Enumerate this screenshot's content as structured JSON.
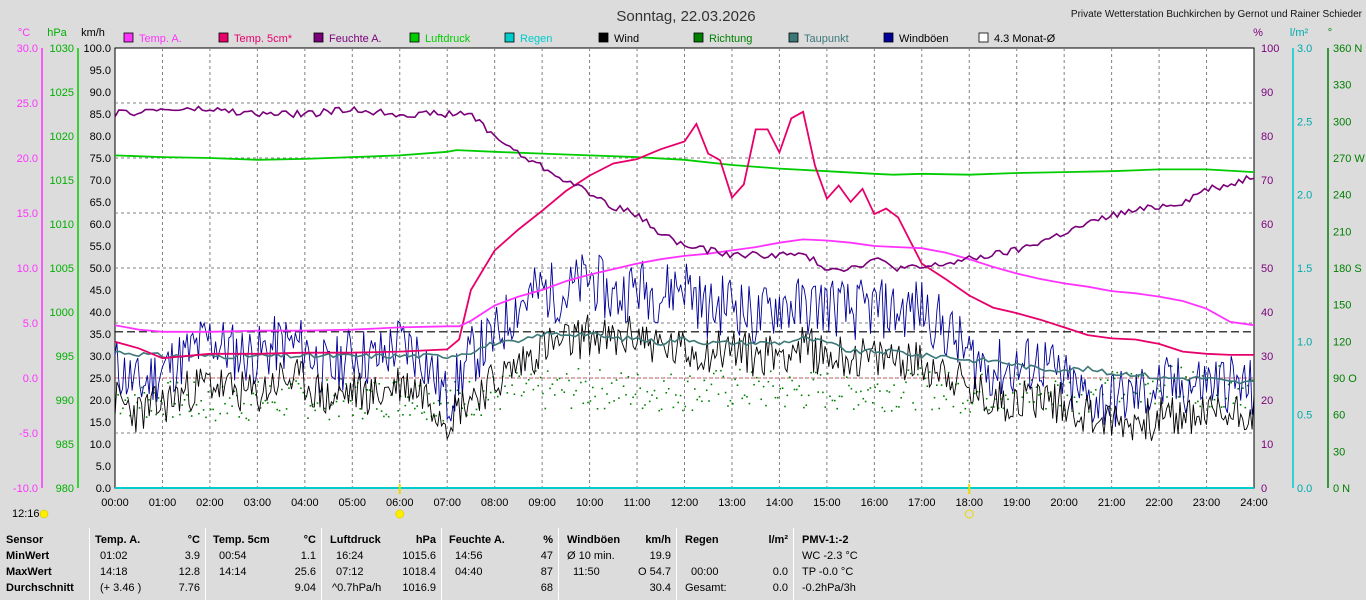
{
  "title": "Sonntag, 22.03.2026",
  "credit": "Private Wetterstation Buchkirchen by Gernot und Rainer Schieder",
  "current_time": "12:16",
  "colors": {
    "temp_a": "#ff33ff",
    "temp_5cm": "#e8006a",
    "feuchte": "#7a007a",
    "luftdruck": "#00cc00",
    "regen": "#00cccc",
    "wind": "#000000",
    "richtung": "#008000",
    "taupunkt": "#3c7878",
    "windboeen": "#000099",
    "monat": "#000000",
    "grid": "#808080",
    "plot_bg": "#ffffff"
  },
  "legend": [
    {
      "label": "Temp. A.",
      "color": "#ff33ff"
    },
    {
      "label": "Temp. 5cm*",
      "color": "#e8006a"
    },
    {
      "label": "Feuchte A.",
      "color": "#7a007a"
    },
    {
      "label": "Luftdruck",
      "color": "#00cc00"
    },
    {
      "label": "Regen",
      "color": "#00cccc"
    },
    {
      "label": "Wind",
      "color": "#000000"
    },
    {
      "label": "Richtung",
      "color": "#008000"
    },
    {
      "label": "Taupunkt",
      "color": "#3c7878"
    },
    {
      "label": "Windböen",
      "color": "#000099"
    },
    {
      "label": "4.3 Monat-Ø",
      "color": "#ffffff"
    }
  ],
  "chart_data": {
    "type": "line",
    "title": "Sonntag, 22.03.2026",
    "x_ticks": [
      "00:00",
      "01:00",
      "02:00",
      "03:00",
      "04:00",
      "05:00",
      "06:00",
      "07:00",
      "08:00",
      "09:00",
      "10:00",
      "11:00",
      "12:00",
      "13:00",
      "14:00",
      "15:00",
      "16:00",
      "17:00",
      "18:00",
      "19:00",
      "20:00",
      "21:00",
      "22:00",
      "23:00",
      "24:00"
    ],
    "axes": {
      "temp_c": {
        "unit": "°C",
        "range": [
          -10,
          30
        ],
        "ticks": [
          "30.0",
          "25.0",
          "20.0",
          "15.0",
          "10.0",
          "5.0",
          "0.0",
          "-5.0",
          "-10.0"
        ]
      },
      "pressure_hpa": {
        "unit": "hPa",
        "range": [
          980,
          1030
        ],
        "ticks": [
          "1030",
          "1025",
          "1020",
          "1015",
          "1010",
          "1005",
          "1000",
          "995",
          "990",
          "985",
          "980"
        ]
      },
      "wind_kmh": {
        "unit": "km/h",
        "range": [
          0,
          100
        ],
        "ticks": [
          "100.0",
          "95.0",
          "90.0",
          "85.0",
          "80.0",
          "75.0",
          "70.0",
          "65.0",
          "60.0",
          "55.0",
          "50.0",
          "45.0",
          "40.0",
          "35.0",
          "30.0",
          "25.0",
          "20.0",
          "15.0",
          "10.0",
          "5.0",
          "0.0"
        ]
      },
      "humidity_pct": {
        "unit": "%",
        "range": [
          0,
          100
        ],
        "ticks": [
          "100",
          "90",
          "80",
          "70",
          "60",
          "50",
          "40",
          "30",
          "20",
          "10",
          "0"
        ]
      },
      "rain_lm2": {
        "unit": "l/m²",
        "range": [
          0,
          3
        ],
        "ticks": [
          "3.0",
          "2.5",
          "2.0",
          "1.5",
          "1.0",
          "0.5",
          "0.0"
        ]
      },
      "direction_deg": {
        "unit": "°",
        "range": [
          0,
          360
        ],
        "ticks": [
          "360 N",
          "330",
          "300",
          "270 W",
          "240",
          "210",
          "180 S",
          "150",
          "120",
          "90 O",
          "60",
          "30",
          "0 N"
        ]
      }
    },
    "sunrise": "06:00",
    "sunset": "18:00",
    "series": [
      {
        "name": "Temp. A.",
        "axis": "temp_c",
        "x": [
          0,
          0.5,
          1,
          2,
          3,
          4,
          5,
          6,
          7,
          7.25,
          7.5,
          8,
          8.5,
          9,
          9.5,
          10,
          10.5,
          11,
          11.5,
          12,
          12.5,
          13,
          13.5,
          14,
          14.5,
          15,
          15.5,
          16,
          16.5,
          17,
          17.5,
          18,
          18.5,
          19,
          19.5,
          20,
          20.5,
          21,
          21.5,
          22,
          22.5,
          23,
          23.5,
          24
        ],
        "y": [
          4.8,
          4.4,
          4.2,
          4.2,
          4.3,
          4.3,
          4.4,
          4.6,
          4.7,
          4.7,
          5.2,
          6.6,
          7.4,
          8.0,
          8.8,
          9.4,
          9.9,
          10.4,
          10.8,
          11.1,
          11.3,
          11.6,
          11.9,
          12.3,
          12.6,
          12.5,
          12.3,
          12.0,
          11.9,
          11.8,
          11.4,
          10.8,
          10.1,
          9.5,
          9.0,
          8.6,
          8.3,
          7.9,
          7.7,
          7.4,
          7.0,
          6.3,
          5.1,
          4.8
        ]
      },
      {
        "name": "Temp. 5cm*",
        "axis": "temp_c",
        "x": [
          0,
          0.5,
          1,
          2,
          3,
          4,
          5,
          6,
          7,
          7.25,
          7.5,
          8,
          8.5,
          9,
          9.5,
          10,
          10.5,
          11,
          11.5,
          12,
          12.25,
          12.5,
          12.75,
          13,
          13.25,
          13.5,
          13.75,
          14,
          14.25,
          14.5,
          14.75,
          15,
          15.25,
          15.5,
          15.75,
          16,
          16.25,
          16.5,
          16.75,
          17,
          17.5,
          18,
          18.5,
          19,
          19.5,
          20,
          20.5,
          21,
          21.5,
          22,
          22.5,
          23,
          23.5,
          24
        ],
        "y": [
          3.3,
          2.7,
          1.8,
          2.2,
          2.2,
          2.3,
          2.3,
          2.4,
          2.6,
          3.5,
          8.0,
          11.6,
          13.5,
          15.2,
          17.0,
          18.4,
          19.5,
          19.9,
          20.8,
          21.5,
          23.1,
          20.4,
          19.8,
          16.4,
          17.6,
          22.6,
          22.6,
          20.5,
          23.6,
          24.2,
          19.3,
          16.3,
          17.5,
          16.0,
          17.2,
          14.9,
          15.4,
          14.6,
          12.5,
          10.4,
          9.0,
          7.5,
          6.4,
          5.9,
          5.3,
          4.6,
          3.9,
          3.6,
          3.5,
          3.1,
          2.4,
          2.2,
          2.1,
          2.1
        ]
      },
      {
        "name": "Feuchte A.",
        "axis": "humidity_pct",
        "x": [
          0,
          1,
          2,
          3,
          4,
          5,
          6,
          6.5,
          7,
          7.5,
          8,
          8.5,
          9,
          9.5,
          10,
          10.5,
          11,
          11.5,
          12,
          12.5,
          13,
          13.5,
          14,
          14.5,
          15,
          15.5,
          16,
          16.5,
          17,
          17.5,
          18,
          18.5,
          19,
          19.5,
          20,
          20.5,
          21,
          21.5,
          22,
          22.5,
          23,
          23.5,
          24
        ],
        "y": [
          85,
          86,
          86,
          85,
          85,
          86,
          85,
          85,
          85,
          85,
          80,
          76,
          73,
          70,
          67,
          64,
          62,
          58,
          55,
          54,
          53,
          53,
          53,
          53,
          50,
          50,
          52,
          50,
          50,
          51,
          52,
          53,
          54,
          56,
          58,
          60,
          62,
          63,
          64,
          65,
          68,
          69,
          71
        ]
      },
      {
        "name": "Luftdruck",
        "axis": "pressure_hpa",
        "x": [
          0,
          1,
          2,
          3,
          4,
          5,
          6,
          7,
          7.2,
          8,
          9,
          10,
          11,
          12,
          13,
          14,
          15,
          16,
          16.4,
          17,
          18,
          19,
          20,
          21,
          22,
          23,
          24
        ],
        "y": [
          1017.8,
          1017.6,
          1017.5,
          1017.3,
          1017.4,
          1017.6,
          1017.8,
          1018.2,
          1018.4,
          1018.2,
          1018.0,
          1017.8,
          1017.6,
          1017.3,
          1016.7,
          1016.3,
          1016.0,
          1015.7,
          1015.6,
          1015.7,
          1015.6,
          1015.8,
          1015.9,
          1016.0,
          1016.2,
          1016.2,
          1015.9
        ]
      },
      {
        "name": "Taupunkt",
        "axis": "wind_kmh",
        "x": [
          0,
          1,
          2,
          3,
          4,
          5,
          6,
          7,
          7.5,
          8,
          8.5,
          9,
          9.5,
          10,
          10.5,
          11,
          11.5,
          12,
          12.5,
          13,
          13.5,
          14,
          14.5,
          15,
          15.5,
          16,
          16.5,
          17,
          17.5,
          18,
          18.5,
          19,
          19.5,
          20,
          20.5,
          21,
          21.5,
          22,
          22.5,
          23,
          23.5,
          24
        ],
        "y": [
          31,
          30,
          30,
          30,
          30,
          30,
          30,
          30,
          31,
          33,
          33,
          35,
          35,
          35,
          34,
          34,
          33,
          34,
          33,
          33,
          33,
          33,
          34,
          33,
          31,
          31,
          31,
          30,
          30,
          29,
          29,
          28,
          27,
          27,
          27,
          26,
          26,
          25,
          25,
          25,
          24,
          24
        ]
      },
      {
        "name": "Wind",
        "axis": "wind_kmh",
        "x": [
          0,
          0.5,
          1,
          1.5,
          2,
          2.5,
          3,
          3.5,
          4,
          4.5,
          5,
          5.5,
          6,
          6.5,
          7,
          7.5,
          8,
          8.5,
          9,
          9.5,
          10,
          10.5,
          11,
          11.5,
          12,
          12.5,
          13,
          13.5,
          14,
          14.5,
          15,
          15.5,
          16,
          16.5,
          17,
          17.5,
          18,
          18.5,
          19,
          19.5,
          20,
          20.5,
          21,
          21.5,
          22,
          22.5,
          23,
          23.5,
          24
        ],
        "y": [
          20,
          17,
          19,
          22,
          24,
          22,
          21,
          25,
          24,
          20,
          22,
          21,
          24,
          22,
          16,
          21,
          24,
          28,
          32,
          33,
          35,
          33,
          35,
          32,
          31,
          31,
          32,
          30,
          31,
          32,
          30,
          30,
          29,
          30,
          28,
          27,
          22,
          20,
          20,
          21,
          19,
          17,
          15,
          15,
          16,
          16,
          17,
          17,
          18
        ]
      },
      {
        "name": "Windböen",
        "axis": "wind_kmh",
        "x": [
          0,
          0.5,
          1,
          1.5,
          2,
          2.5,
          3,
          3.5,
          4,
          4.5,
          5,
          5.5,
          6,
          6.5,
          7,
          7.5,
          8,
          8.5,
          9,
          9.5,
          10,
          10.5,
          11,
          11.5,
          12,
          12.5,
          13,
          13.5,
          14,
          14.5,
          15,
          15.5,
          16,
          16.5,
          17,
          17.5,
          18,
          18.5,
          19,
          19.5,
          20,
          20.5,
          21,
          21.5,
          22,
          22.5,
          23,
          23.5,
          24
        ],
        "y": [
          28,
          23,
          27,
          30,
          34,
          31,
          30,
          33,
          32,
          26,
          31,
          29,
          33,
          30,
          20,
          30,
          34,
          42,
          45,
          44,
          48,
          43,
          46,
          44,
          47,
          40,
          43,
          38,
          42,
          41,
          42,
          40,
          41,
          40,
          41,
          36,
          30,
          27,
          27,
          29,
          24,
          20,
          20,
          21,
          23,
          23,
          24,
          24,
          22
        ]
      },
      {
        "name": "Richtung",
        "axis": "direction_deg",
        "x": [
          0,
          1,
          2,
          3,
          4,
          5,
          6,
          7,
          8,
          9,
          10,
          11,
          12,
          13,
          14,
          15,
          16,
          17,
          18,
          19,
          20,
          21,
          22,
          23,
          24
        ],
        "y": [
          75,
          72,
          70,
          72,
          74,
          73,
          76,
          72,
          78,
          80,
          82,
          80,
          80,
          82,
          80,
          81,
          80,
          82,
          78,
          80,
          78,
          80,
          84,
          84,
          82
        ]
      },
      {
        "name": "4.3 Monat-Ø",
        "axis": "wind_kmh",
        "x": [
          0,
          24
        ],
        "y": [
          35.5,
          35.5
        ]
      },
      {
        "name": "Regen",
        "axis": "rain_lm2",
        "x": [
          0,
          24
        ],
        "y": [
          0,
          0
        ]
      }
    ]
  },
  "table": {
    "headers": {
      "sensor": "Sensor",
      "temp_a": "Temp. A.",
      "temp_a_unit": "°C",
      "temp_5cm": "Temp. 5cm",
      "temp_5cm_unit": "°C",
      "luftdruck": "Luftdruck",
      "luftdruck_unit": "hPa",
      "feuchte": "Feuchte A.",
      "feuchte_unit": "%",
      "windboeen": "Windböen",
      "windboeen_unit": "km/h",
      "regen": "Regen",
      "regen_unit": "l/m²",
      "pmv": "PMV-1:-2"
    },
    "rows": [
      {
        "label": "MinWert",
        "ta_time": "01:02",
        "ta_val": "3.9",
        "t5_time": "00:54",
        "t5_val": "1.1",
        "lp_time": "16:24",
        "lp_val": "1015.6",
        "fe_time": "14:56",
        "fe_val": "47",
        "wb_time": "Ø 10 min.",
        "wb_val": "19.9",
        "rg_time": "",
        "rg_val": "",
        "pmv": "WC -2.3 °C"
      },
      {
        "label": "MaxWert",
        "ta_time": "14:18",
        "ta_val": "12.8",
        "t5_time": "14:14",
        "t5_val": "25.6",
        "lp_time": "07:12",
        "lp_val": "1018.4",
        "fe_time": "04:40",
        "fe_val": "87",
        "wb_time": "11:50",
        "wb_val": "O 54.7",
        "rg_time": "00:00",
        "rg_val": "0.0",
        "pmv": "TP -0.0 °C"
      },
      {
        "label": "Durchschnitt",
        "ta_time": "(+ 3.46 )",
        "ta_val": "7.76",
        "t5_time": "",
        "t5_val": "9.04",
        "lp_time": "^0.7hPa/h",
        "lp_val": "1016.9",
        "fe_time": "",
        "fe_val": "68",
        "wb_time": "",
        "wb_val": "30.4",
        "rg_time": "Gesamt:",
        "rg_val": "0.0",
        "pmv": "-0.2hPa/3h"
      }
    ]
  }
}
